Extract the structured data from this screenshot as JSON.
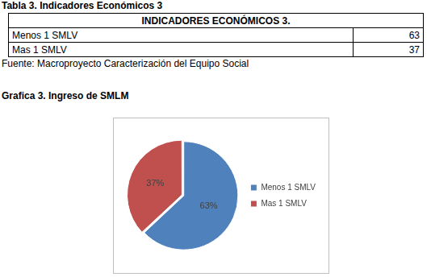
{
  "caption": "Tabla 3. Indicadores Económicos 3",
  "table": {
    "header": "INDICADORES ECONÓMICOS 3.",
    "rows": [
      [
        "Menos 1 SMLV",
        63
      ],
      [
        "Mas 1 SMLV",
        37
      ]
    ]
  },
  "source": "Fuente: Macroproyecto Caracterización del Equipo Social",
  "figure_caption": "Grafica 3. Ingreso de SMLM",
  "chart_data": {
    "type": "pie",
    "categories": [
      "Menos 1 SMLV",
      "Mas 1 SMLV"
    ],
    "values": [
      63,
      37
    ],
    "value_labels": [
      "63%",
      "37%"
    ],
    "colors": [
      "#4f81bd",
      "#c0504d"
    ],
    "data_labels": true,
    "legend": "right"
  }
}
